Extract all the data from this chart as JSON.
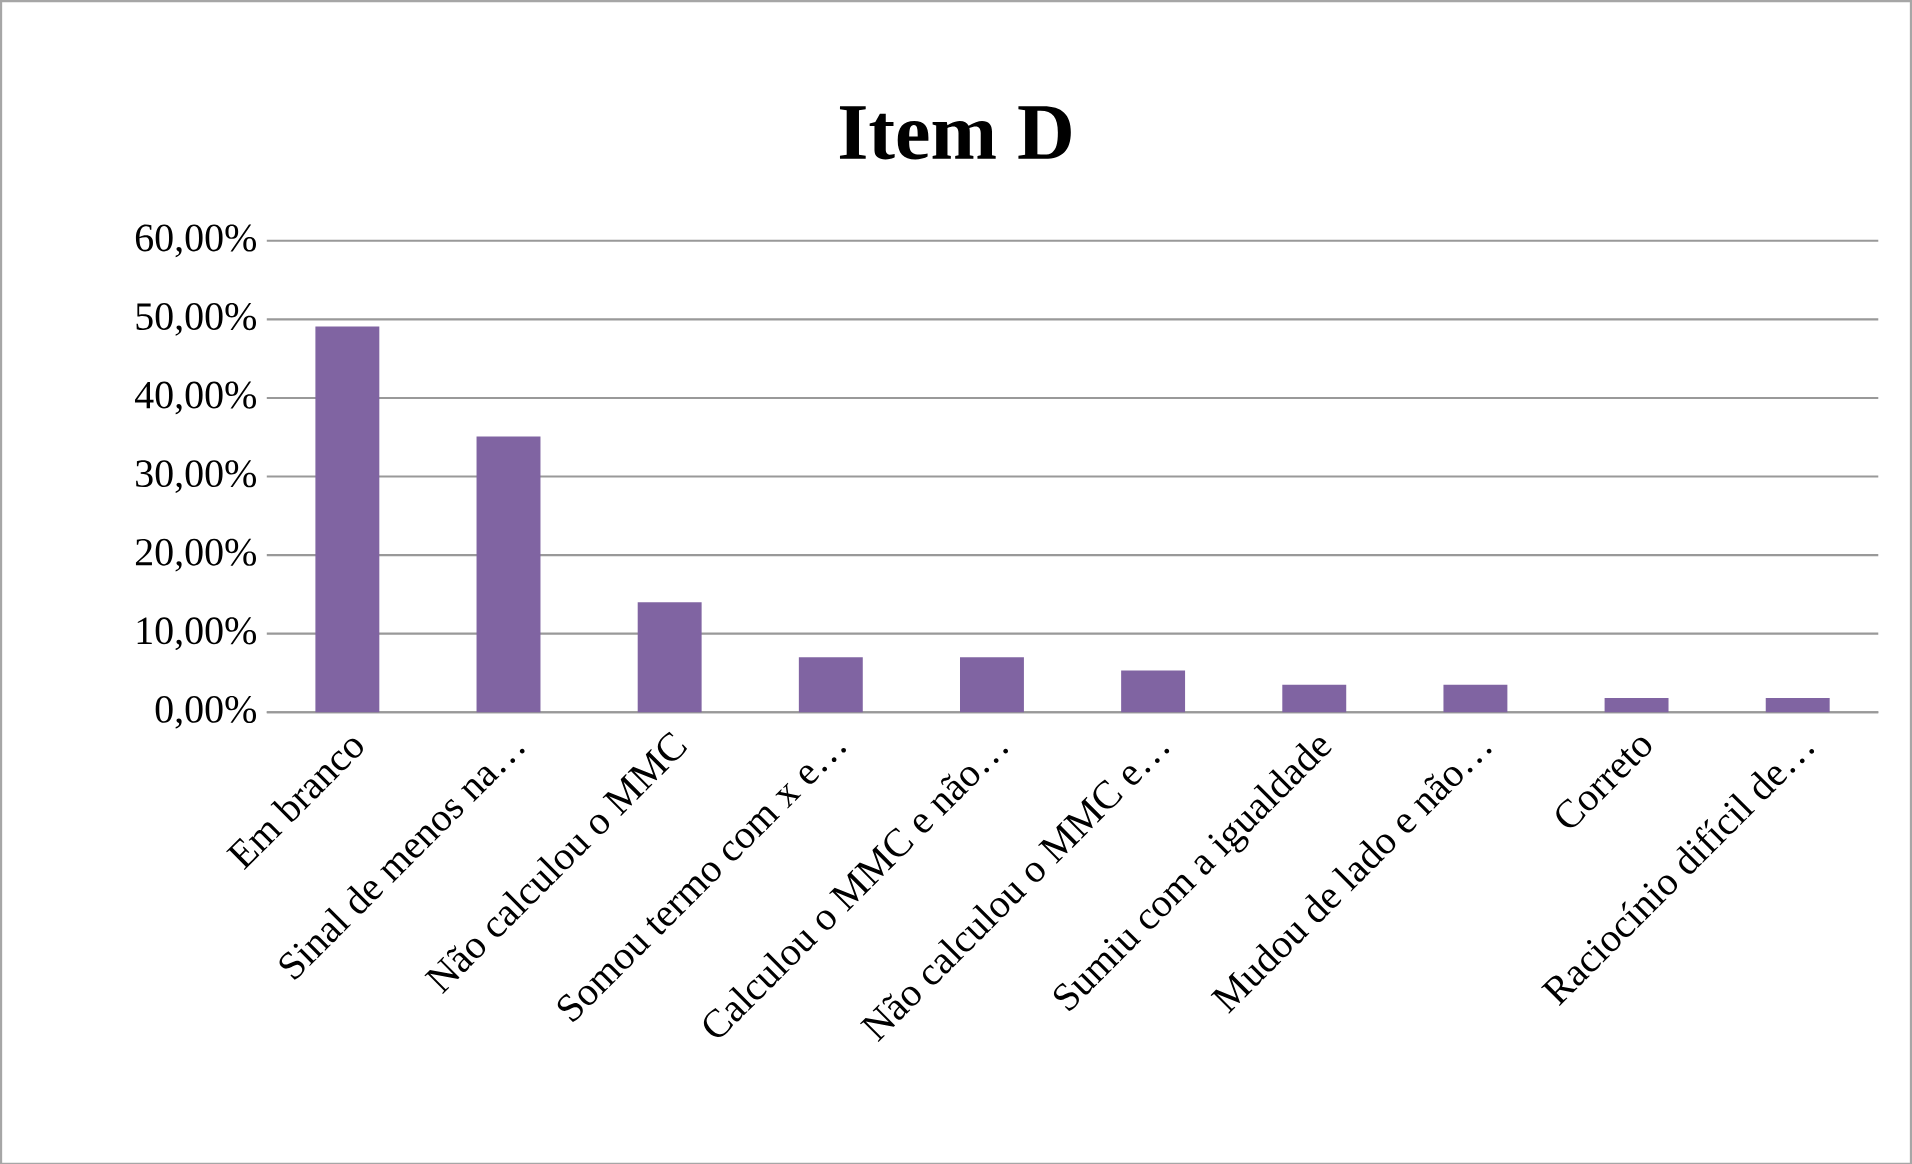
{
  "chart_data": {
    "type": "bar",
    "title": "Item D",
    "categories": [
      "Em branco",
      "Sinal de menos na…",
      "Não calculou o MMC",
      "Somou termo com x e…",
      "Calculou o MMC e não…",
      "Não calculou o MMC e…",
      "Sumiu com a igualdade",
      "Mudou de lado e não…",
      "Correto",
      "Raciocínio difícil de…"
    ],
    "values": [
      49.1,
      35.1,
      14.0,
      7.0,
      7.0,
      5.3,
      3.5,
      3.5,
      1.8,
      1.8
    ],
    "color": "#8064a2",
    "ylim": [
      0,
      60
    ],
    "yticks": [
      {
        "value": 0,
        "label": "0,00%"
      },
      {
        "value": 10,
        "label": "10,00%"
      },
      {
        "value": 20,
        "label": "20,00%"
      },
      {
        "value": 30,
        "label": "30,00%"
      },
      {
        "value": 40,
        "label": "40,00%"
      },
      {
        "value": 50,
        "label": "50,00%"
      },
      {
        "value": 60,
        "label": "60,00%"
      }
    ],
    "grid": "y"
  }
}
